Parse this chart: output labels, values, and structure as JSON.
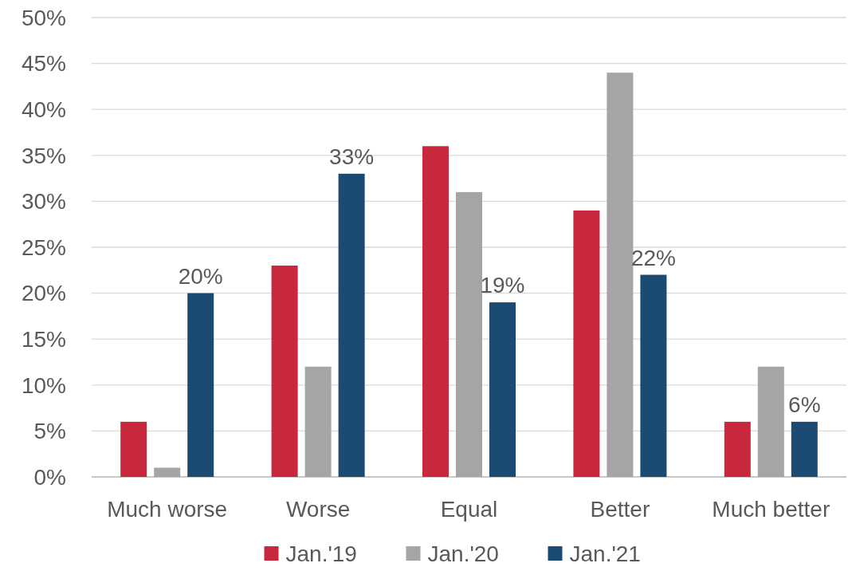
{
  "chart_data": {
    "type": "bar",
    "categories": [
      "Much worse",
      "Worse",
      "Equal",
      "Better",
      "Much better"
    ],
    "series": [
      {
        "name": "Jan.'19",
        "color": "#c8283c",
        "values": [
          6,
          23,
          36,
          29,
          6
        ]
      },
      {
        "name": "Jan.'20",
        "color": "#a5a5a5",
        "values": [
          1,
          12,
          31,
          44,
          12
        ]
      },
      {
        "name": "Jan.'21",
        "color": "#1b4a72",
        "values": [
          20,
          33,
          19,
          22,
          6
        ],
        "value_labels": [
          "20%",
          "33%",
          "19%",
          "22%",
          "6%"
        ]
      }
    ],
    "ylim": [
      0,
      50
    ],
    "yticks": [
      {
        "value": 0,
        "label": "0%"
      },
      {
        "value": 5,
        "label": "5%"
      },
      {
        "value": 10,
        "label": "10%"
      },
      {
        "value": 15,
        "label": "15%"
      },
      {
        "value": 20,
        "label": "20%"
      },
      {
        "value": 25,
        "label": "25%"
      },
      {
        "value": 30,
        "label": "30%"
      },
      {
        "value": 35,
        "label": "35%"
      },
      {
        "value": 40,
        "label": "40%"
      },
      {
        "value": 45,
        "label": "45%"
      },
      {
        "value": 50,
        "label": "50%"
      }
    ],
    "grid": "y",
    "legend": "bottom"
  }
}
